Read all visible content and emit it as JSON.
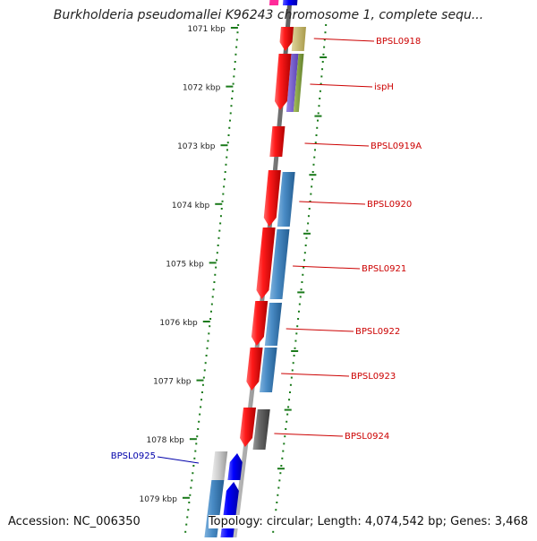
{
  "title": "Burkholderia pseudomallei K96243 chromosome 1, complete sequ...",
  "footer": {
    "accession": "Accession: NC_006350",
    "topology": "Topology: circular; Length: 4,074,542 bp; Genes: 3,468"
  },
  "colors": {
    "backbone": "#8a8a8a",
    "tick": "#1a7a1a",
    "forward_gene": "#ee1111",
    "reverse_gene": "#3f82bf",
    "label_forward": "#cc0000",
    "label_reverse": "#0000aa"
  },
  "scale_labels": [
    {
      "text": "1071 kbp",
      "kbp": 1071
    },
    {
      "text": "1072 kbp",
      "kbp": 1072
    },
    {
      "text": "1073 kbp",
      "kbp": 1073
    },
    {
      "text": "1074 kbp",
      "kbp": 1074
    },
    {
      "text": "1075 kbp",
      "kbp": 1075
    },
    {
      "text": "1076 kbp",
      "kbp": 1076
    },
    {
      "text": "1077 kbp",
      "kbp": 1077
    },
    {
      "text": "1078 kbp",
      "kbp": 1078
    },
    {
      "text": "1079 kbp",
      "kbp": 1079
    }
  ],
  "gene_labels": [
    {
      "name": "BPSL0918",
      "strand": "forward"
    },
    {
      "name": "ispH",
      "strand": "forward"
    },
    {
      "name": "BPSL0919A",
      "strand": "forward"
    },
    {
      "name": "BPSL0920",
      "strand": "forward"
    },
    {
      "name": "BPSL0921",
      "strand": "forward"
    },
    {
      "name": "BPSL0922",
      "strand": "forward"
    },
    {
      "name": "BPSL0923",
      "strand": "forward"
    },
    {
      "name": "BPSL0924",
      "strand": "forward"
    },
    {
      "name": "BPSL0925",
      "strand": "reverse"
    }
  ]
}
